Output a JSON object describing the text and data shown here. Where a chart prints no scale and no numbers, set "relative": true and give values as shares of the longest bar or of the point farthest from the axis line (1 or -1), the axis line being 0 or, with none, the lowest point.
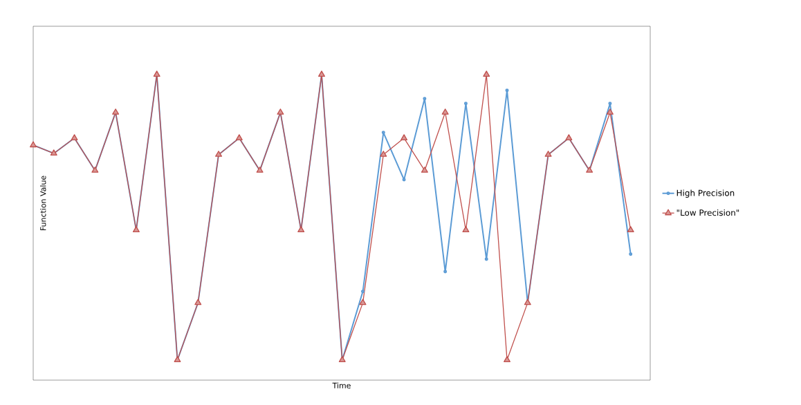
{
  "chart_data": {
    "type": "line",
    "relative": true,
    "xlabel": "Time",
    "ylabel": "Function Value",
    "legend": "right",
    "categories": [
      null,
      null,
      null,
      null,
      null,
      null,
      null,
      null,
      null,
      null,
      null,
      null,
      null,
      null,
      null,
      null,
      null,
      null,
      null,
      null,
      null,
      null,
      null,
      null,
      null,
      null,
      null,
      null,
      null,
      null
    ],
    "series": [
      {
        "name": "High Precision",
        "color": "#5b9bd5",
        "marker": "circle",
        "values": [
          0.769,
          0.742,
          0.792,
          0.686,
          0.876,
          0.491,
          1,
          0.066,
          0.253,
          0.738,
          0.792,
          0.686,
          0.876,
          0.491,
          1,
          0.066,
          0.29,
          0.81,
          0.656,
          0.921,
          0.355,
          0.905,
          0.396,
          0.948,
          0.253,
          0.738,
          0.792,
          0.686,
          0.905,
          0.412
        ]
      },
      {
        "name": "\"Low Precision\"",
        "color": "#c0504d",
        "marker": "triangle",
        "values": [
          0.769,
          0.742,
          0.792,
          0.686,
          0.876,
          0.491,
          1,
          0.066,
          0.253,
          0.738,
          0.792,
          0.686,
          0.876,
          0.491,
          1,
          0.066,
          0.253,
          0.738,
          0.792,
          0.686,
          0.876,
          0.491,
          1,
          0.066,
          0.253,
          0.738,
          0.792,
          0.686,
          0.876,
          0.491
        ]
      }
    ]
  }
}
